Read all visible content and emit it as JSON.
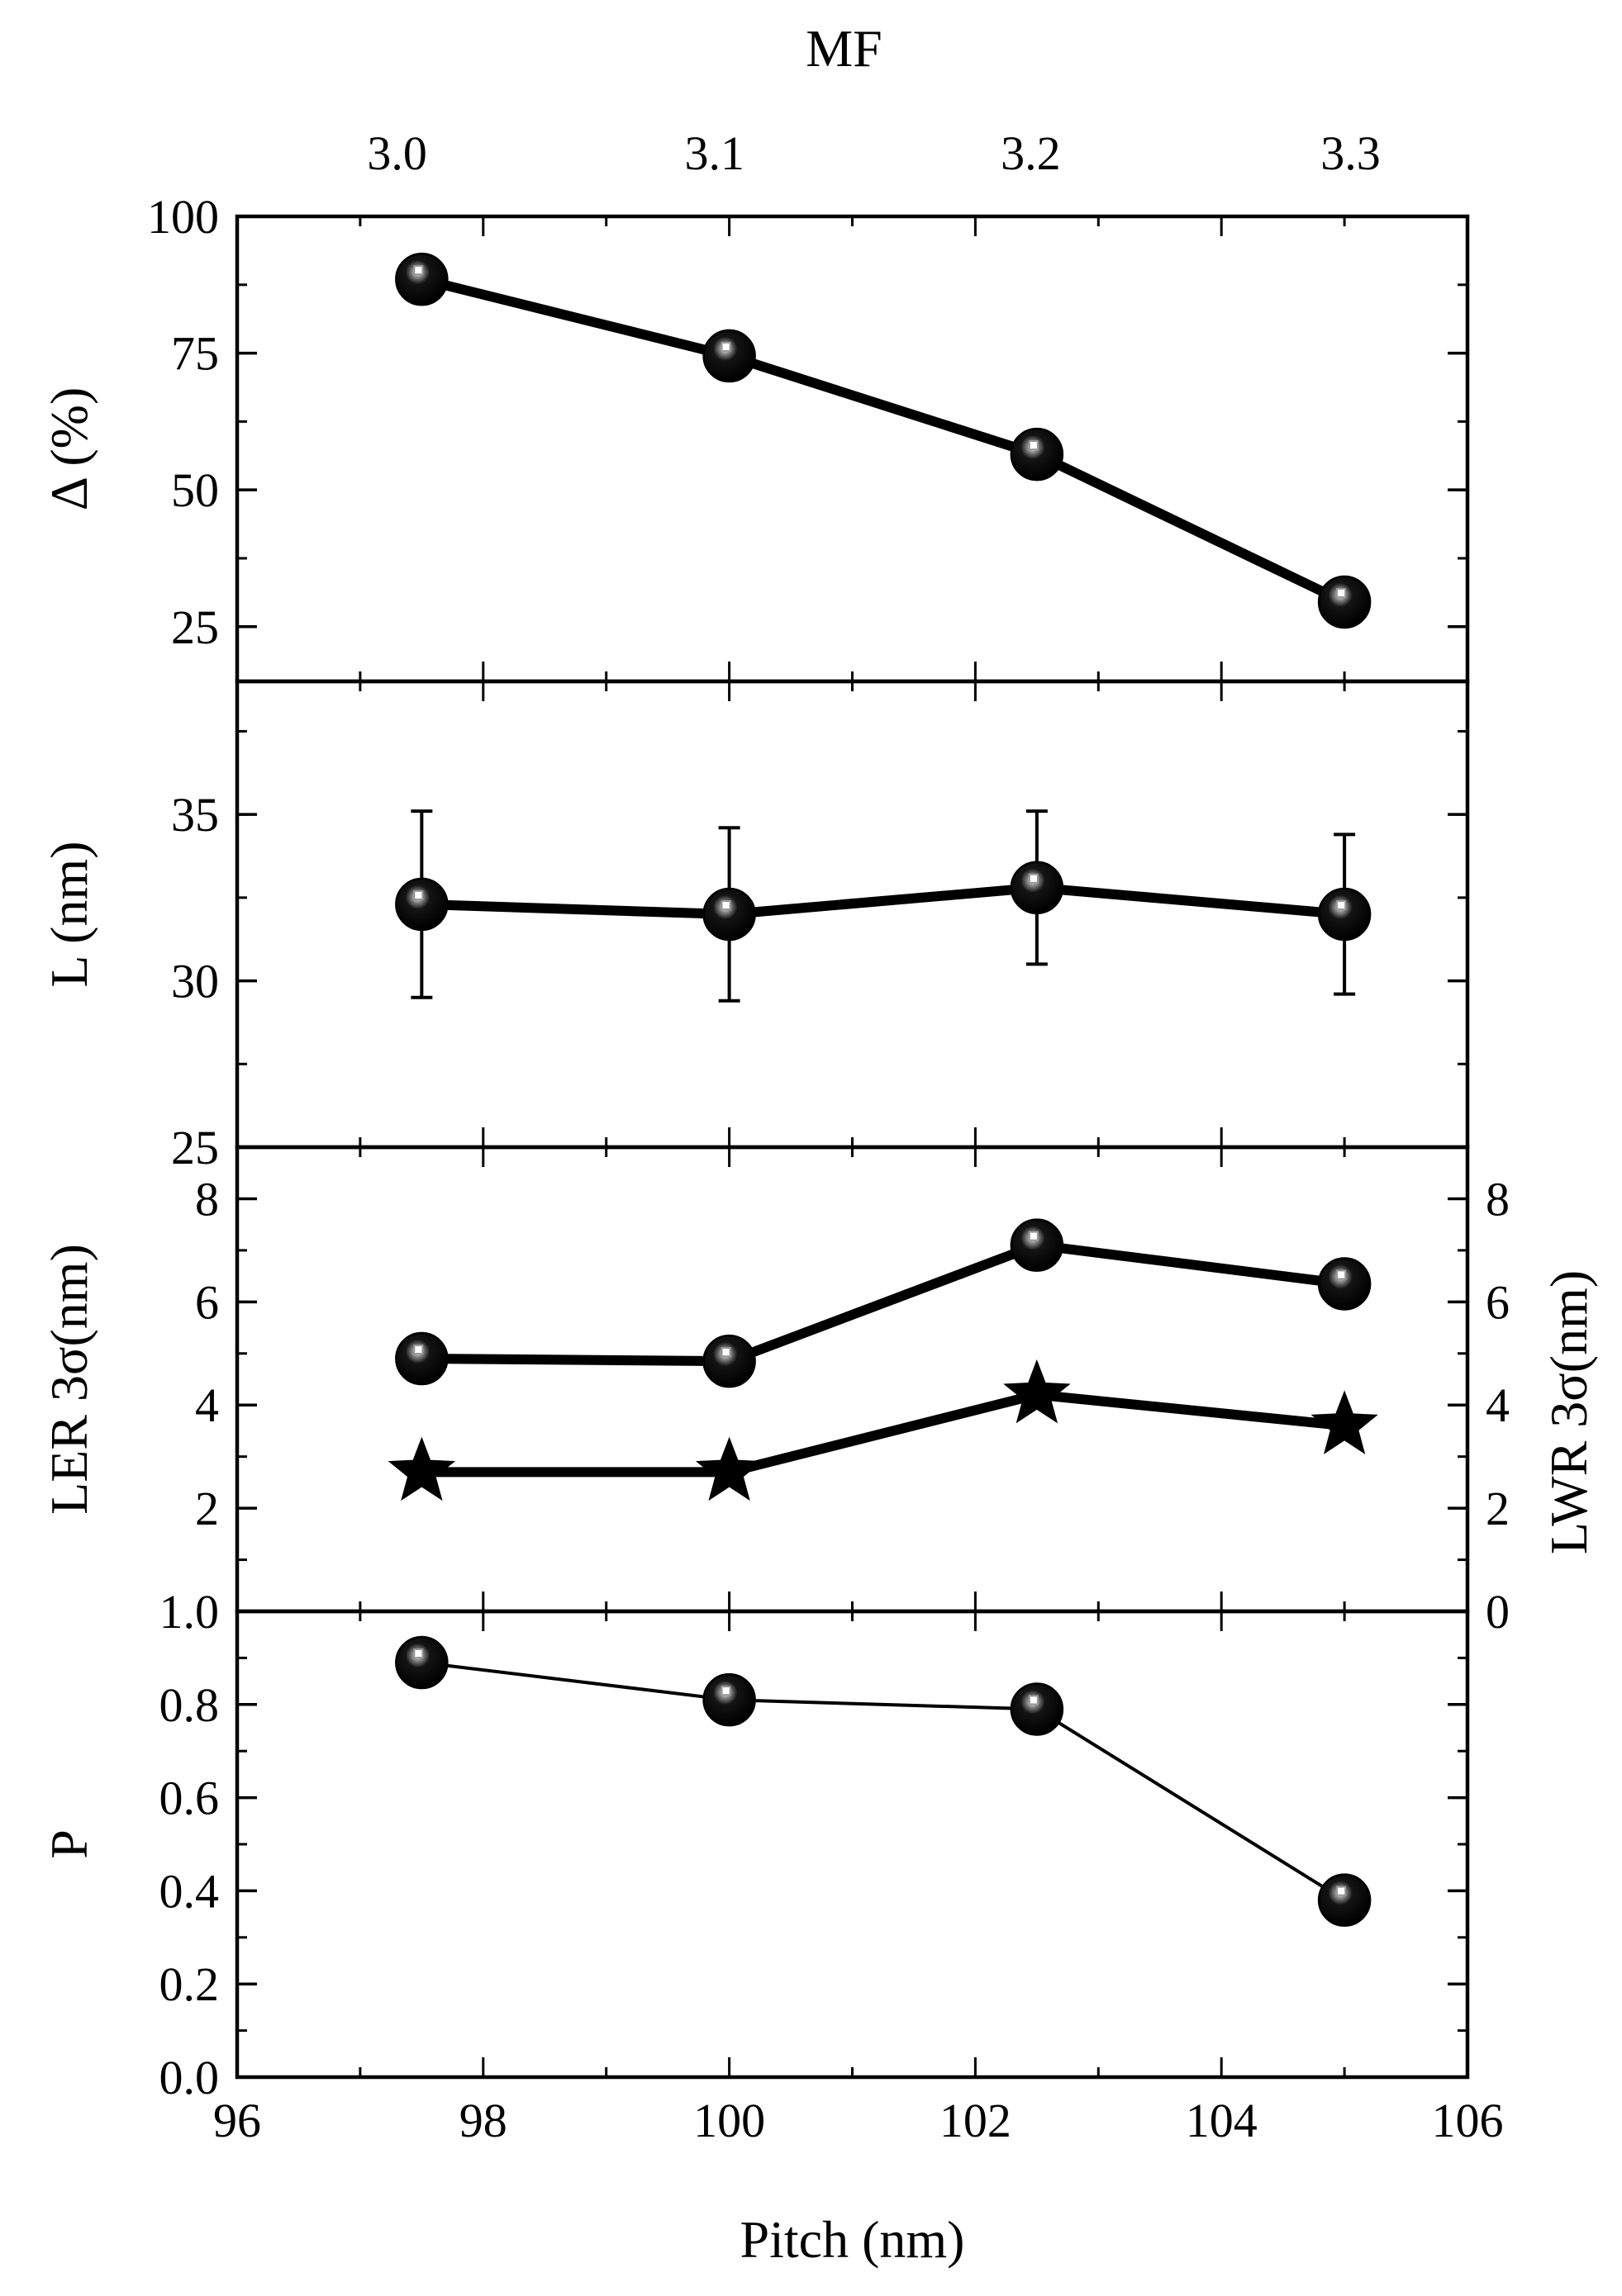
{
  "chart_data": {
    "type": "line",
    "layout": "four vertically stacked panels sharing the x axis",
    "x_axis": {
      "label": "Pitch (nm)",
      "range": [
        96,
        106
      ],
      "ticks": [
        96,
        98,
        100,
        102,
        104,
        106
      ],
      "tick_labels": [
        "96",
        "98",
        "100",
        "102",
        "104",
        "106"
      ]
    },
    "top_axis": {
      "label": "MF",
      "ticks": [
        {
          "label": "3.0",
          "at_pitch": 97.3
        },
        {
          "label": "3.1",
          "at_pitch": 99.88
        },
        {
          "label": "3.2",
          "at_pitch": 102.45
        },
        {
          "label": "3.3",
          "at_pitch": 105.05
        }
      ]
    },
    "x": [
      97.5,
      100,
      102.5,
      105
    ],
    "panels": [
      {
        "id": "delta",
        "ylabel": "Δ (%)",
        "ylim": [
          15,
          100
        ],
        "ticks": [
          25,
          50,
          75,
          100
        ],
        "tick_labels": [
          "25",
          "50",
          "75",
          "100"
        ],
        "series": [
          {
            "name": "Δ",
            "marker": "sphere",
            "values": [
              88.5,
              74.5,
              56.5,
              29.5
            ]
          }
        ]
      },
      {
        "id": "length",
        "ylabel": "L (nm)",
        "ylim": [
          25,
          39
        ],
        "ticks": [
          25,
          30,
          35
        ],
        "tick_labels": [
          "25",
          "30",
          "35"
        ],
        "series": [
          {
            "name": "L",
            "marker": "sphere",
            "values": [
              32.3,
              32.0,
              32.8,
              32.0
            ],
            "errors": [
              2.8,
              2.6,
              2.3,
              2.4
            ]
          }
        ]
      },
      {
        "id": "roughness",
        "ylabel": "LER 3σ(nm)",
        "ylabel_right": "LWR 3σ(nm)",
        "ylim": [
          0,
          9
        ],
        "ticks": [
          2,
          4,
          6,
          8
        ],
        "tick_labels": [
          "2",
          "4",
          "6",
          "8"
        ],
        "right_ticks": [
          0,
          2,
          4,
          6,
          8
        ],
        "right_tick_labels": [
          "0",
          "2",
          "4",
          "6",
          "8"
        ],
        "series": [
          {
            "name": "LWR 3σ",
            "marker": "sphere",
            "values": [
              4.9,
              4.85,
              7.1,
              6.35
            ]
          },
          {
            "name": "LER 3σ",
            "marker": "star",
            "values": [
              2.7,
              2.7,
              4.2,
              3.6
            ]
          }
        ]
      },
      {
        "id": "probability",
        "ylabel": "P",
        "ylim": [
          0,
          1.0
        ],
        "ticks": [
          0.0,
          0.2,
          0.4,
          0.6,
          0.8,
          1.0
        ],
        "tick_labels": [
          "0.0",
          "0.2",
          "0.4",
          "0.6",
          "0.8",
          "1.0"
        ],
        "series": [
          {
            "name": "P",
            "marker": "sphere",
            "values": [
              0.89,
              0.81,
              0.79,
              0.38
            ]
          }
        ]
      }
    ]
  }
}
